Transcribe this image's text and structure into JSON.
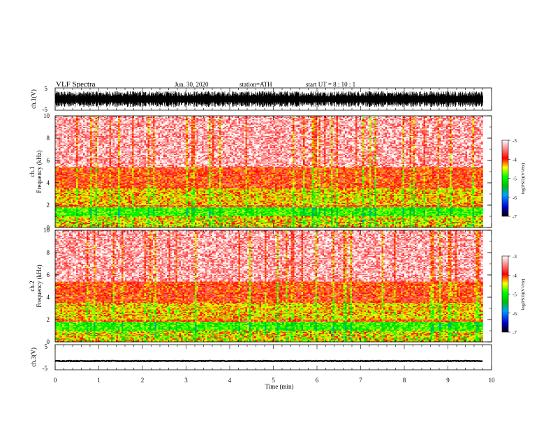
{
  "header": {
    "title": "VLF  Spectra",
    "date": "Jun. 30, 2020",
    "station": "station=ATH",
    "start_ut": "start  UT  =   8 : 10 : 1"
  },
  "chart_data": [
    {
      "type": "line",
      "panel": "ch1-waveform",
      "ylabel": "ch.1(V)",
      "ylim": [
        -5,
        5
      ],
      "yticks": [
        "5",
        "-5"
      ],
      "xlim": [
        0,
        10
      ],
      "signal": "dense oscillation filling about -3.5 to 3.5 V across 0 to 9.8 min"
    },
    {
      "type": "heatmap",
      "panel": "ch1-spectrogram",
      "ylabel_top": "ch.1",
      "ylabel": "Frequency  (kHz)",
      "ylim": [
        0,
        10
      ],
      "yticks": [
        "0",
        "2",
        "4",
        "6",
        "8",
        "10"
      ],
      "xlim": [
        0,
        10
      ],
      "data_end_min": 9.8,
      "bands": [
        {
          "f_lo": 5.4,
          "f_hi": 10.0,
          "level": -3.3
        },
        {
          "f_lo": 3.5,
          "f_hi": 5.4,
          "level": -3.9
        },
        {
          "f_lo": 2.0,
          "f_hi": 3.5,
          "level": -4.3
        },
        {
          "f_lo": 1.8,
          "f_hi": 2.0,
          "level": -3.9
        },
        {
          "f_lo": 1.0,
          "f_hi": 1.8,
          "level": -4.9
        },
        {
          "f_lo": 0.0,
          "f_hi": 1.0,
          "level": -4.3
        }
      ],
      "colorbar": {
        "label": "log(PSD)(V²/Hz)",
        "ticks": [
          "-3",
          "-4",
          "-5",
          "-6",
          "-7"
        ],
        "range": [
          -7,
          -3
        ]
      }
    },
    {
      "type": "heatmap",
      "panel": "ch2-spectrogram",
      "ylabel_top": "ch.2",
      "ylabel": "Frequency  (kHz)",
      "ylim": [
        0,
        10
      ],
      "yticks": [
        "0",
        "2",
        "4",
        "6",
        "8",
        "10"
      ],
      "xlim": [
        0,
        10
      ],
      "data_end_min": 9.8,
      "bands": [
        {
          "f_lo": 5.4,
          "f_hi": 10.0,
          "level": -3.3
        },
        {
          "f_lo": 3.5,
          "f_hi": 5.4,
          "level": -3.9
        },
        {
          "f_lo": 2.0,
          "f_hi": 3.5,
          "level": -4.3
        },
        {
          "f_lo": 1.8,
          "f_hi": 2.0,
          "level": -3.9
        },
        {
          "f_lo": 1.0,
          "f_hi": 1.8,
          "level": -4.9
        },
        {
          "f_lo": 0.0,
          "f_hi": 1.0,
          "level": -4.3
        }
      ],
      "colorbar": {
        "label": "log(PSD)(V²/Hz)",
        "ticks": [
          "-3",
          "-4",
          "-5",
          "-6",
          "-7"
        ],
        "range": [
          -7,
          -3
        ]
      }
    },
    {
      "type": "line",
      "panel": "ch3-waveform",
      "ylabel": "ch.3(V)",
      "ylim": [
        -5,
        5
      ],
      "yticks": [
        "5",
        "-5"
      ],
      "xlim": [
        0,
        10
      ],
      "xlabel": "Time  (min)",
      "xticks": [
        "0",
        "1",
        "2",
        "3",
        "4",
        "5",
        "6",
        "7",
        "8",
        "9",
        "10"
      ],
      "signal": "flat trace near -1.5 V across 0 to 9.8 min"
    }
  ],
  "colors": {
    "colormap": [
      "#000000",
      "#0000cc",
      "#00a0ff",
      "#00c000",
      "#00ff00",
      "#ffff00",
      "#ff0000",
      "#ffffff"
    ],
    "trace": "#000000"
  }
}
